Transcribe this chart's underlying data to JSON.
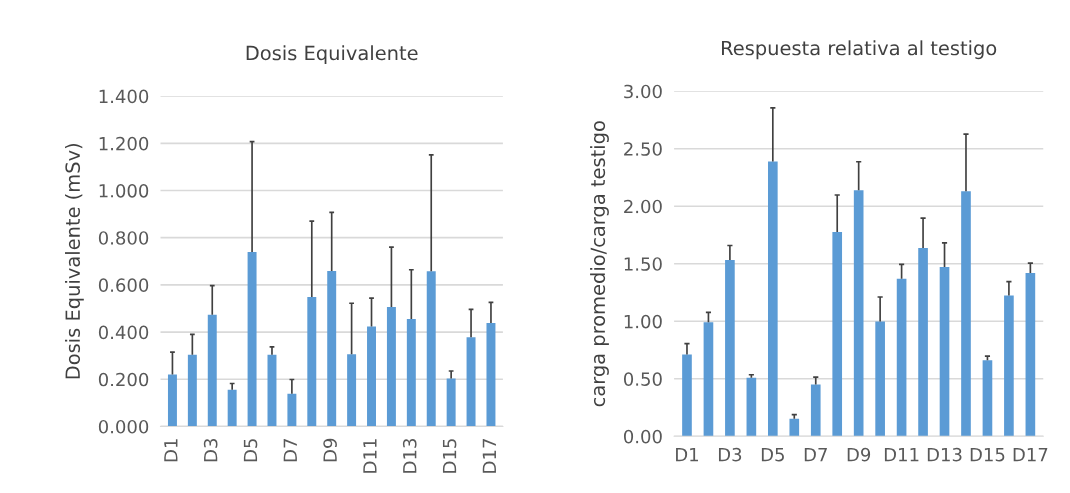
{
  "chart_data": [
    {
      "type": "bar",
      "title": "Dosis Equivalente",
      "ylabel": "Dosis Equivalente (mSv)",
      "categories": [
        "D1",
        null,
        "D3",
        null,
        "D5",
        null,
        "D7",
        null,
        "D9",
        null,
        "D11",
        null,
        "D13",
        null,
        "D15",
        null,
        "D17"
      ],
      "values": [
        0.22,
        0.304,
        0.473,
        0.156,
        0.739,
        0.304,
        0.139,
        0.549,
        0.659,
        0.306,
        0.424,
        0.506,
        0.455,
        0.658,
        0.203,
        0.378,
        0.438
      ],
      "errors": [
        [
          0.22,
          0.315
        ],
        [
          0.304,
          0.39
        ],
        [
          0.473,
          0.597
        ],
        [
          0.156,
          0.182
        ],
        [
          0.739,
          1.207
        ],
        [
          0.304,
          0.337
        ],
        [
          0.139,
          0.199
        ],
        [
          0.549,
          0.87
        ],
        [
          0.659,
          0.907
        ],
        [
          0.306,
          0.522
        ],
        [
          0.424,
          0.544
        ],
        [
          0.506,
          0.76
        ],
        [
          0.455,
          0.664
        ],
        [
          0.658,
          1.151
        ],
        [
          0.203,
          0.235
        ],
        [
          0.378,
          0.496
        ],
        [
          0.438,
          0.526
        ]
      ],
      "color": "#5b9bd5",
      "ylim": [
        0,
        1.4
      ],
      "yticks": [
        {
          "value": 0,
          "label": "0.000"
        },
        {
          "value": 0.2,
          "label": "0.200"
        },
        {
          "value": 0.4,
          "label": "0.400"
        },
        {
          "value": 0.6,
          "label": "0.600"
        },
        {
          "value": 0.8,
          "label": "0.800"
        },
        {
          "value": 1.0,
          "label": "1.000"
        },
        {
          "value": 1.2,
          "label": "1.200"
        },
        {
          "value": 1.4,
          "label": "1.400"
        }
      ],
      "grid": "y"
    },
    {
      "type": "bar",
      "title": "Respuesta relativa al testigo",
      "ylabel": "carga promedio/carga testigo",
      "categories": [
        "D1",
        null,
        "D3",
        null,
        "D5",
        null,
        "D7",
        null,
        "D9",
        null,
        "D11",
        null,
        "D13",
        null,
        "D15",
        null,
        "D17"
      ],
      "values": [
        0.711,
        0.991,
        1.532,
        0.509,
        2.39,
        0.153,
        0.451,
        1.777,
        2.139,
        0.997,
        1.37,
        1.636,
        1.471,
        2.13,
        0.662,
        1.223,
        1.419
      ],
      "errors": [
        [
          0.711,
          0.806
        ],
        [
          0.991,
          1.078
        ],
        [
          1.532,
          1.659
        ],
        [
          0.509,
          0.535
        ],
        [
          2.39,
          2.855
        ],
        [
          0.153,
          0.188
        ],
        [
          0.451,
          0.514
        ],
        [
          1.777,
          2.098
        ],
        [
          2.139,
          2.387
        ],
        [
          0.997,
          1.211
        ],
        [
          1.37,
          1.494
        ],
        [
          1.636,
          1.896
        ],
        [
          1.471,
          1.682
        ],
        [
          2.13,
          2.627
        ],
        [
          0.662,
          0.697
        ],
        [
          1.223,
          1.344
        ],
        [
          1.419,
          1.506
        ]
      ],
      "color": "#5b9bd5",
      "ylim": [
        0,
        3.0
      ],
      "yticks": [
        {
          "value": 0,
          "label": "0.00"
        },
        {
          "value": 0.5,
          "label": "0.50"
        },
        {
          "value": 1.0,
          "label": "1.00"
        },
        {
          "value": 1.5,
          "label": "1.50"
        },
        {
          "value": 2.0,
          "label": "2.00"
        },
        {
          "value": 2.5,
          "label": "2.50"
        },
        {
          "value": 3.0,
          "label": "3.00"
        }
      ],
      "grid": "y"
    }
  ]
}
